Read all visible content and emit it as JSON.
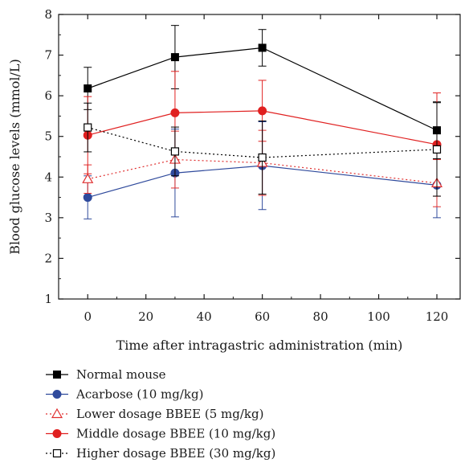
{
  "chart_data": {
    "type": "line",
    "xlabel": "Time after intragastric administration (min)",
    "ylabel": "Blood glucose levels (mmol/L)",
    "xlim": [
      -10,
      128
    ],
    "ylim": [
      1,
      8
    ],
    "x_ticks": [
      0,
      20,
      40,
      60,
      80,
      100,
      120
    ],
    "y_ticks": [
      1,
      2,
      3,
      4,
      5,
      6,
      7,
      8
    ],
    "x": [
      0,
      30,
      60,
      120
    ],
    "legend_placement": "below",
    "grid": false,
    "series": [
      {
        "name": "Normal mouse",
        "values": [
          6.18,
          6.95,
          7.18,
          5.15
        ],
        "error": [
          0.52,
          0.78,
          0.45,
          0.7
        ],
        "color": "#000000",
        "marker": "filled-square",
        "line": "solid"
      },
      {
        "name": "Acarbose (10 mg/kg)",
        "values": [
          3.5,
          4.1,
          4.28,
          3.8
        ],
        "error": [
          0.53,
          1.08,
          1.08,
          0.8
        ],
        "color": "#2f4a9c",
        "marker": "filled-circle",
        "line": "solid"
      },
      {
        "name": "Lower dosage BBEE (5 mg/kg)",
        "values": [
          3.95,
          4.43,
          4.35,
          3.85
        ],
        "error": [
          0.35,
          0.7,
          0.8,
          0.58
        ],
        "color": "#e03030",
        "marker": "open-triangle",
        "line": "dotted"
      },
      {
        "name": "Middle dosage BBEE (10 mg/kg)",
        "values": [
          5.03,
          5.58,
          5.63,
          4.8
        ],
        "error": [
          0.95,
          1.02,
          0.75,
          1.27
        ],
        "color": "#e02020",
        "marker": "filled-circle",
        "line": "solid"
      },
      {
        "name": "Higher dosage BBEE (30 mg/kg)",
        "values": [
          5.22,
          4.63,
          4.48,
          4.68
        ],
        "error": [
          0.6,
          0.6,
          0.9,
          1.15
        ],
        "color": "#000000",
        "marker": "open-square",
        "line": "dotted"
      }
    ]
  }
}
